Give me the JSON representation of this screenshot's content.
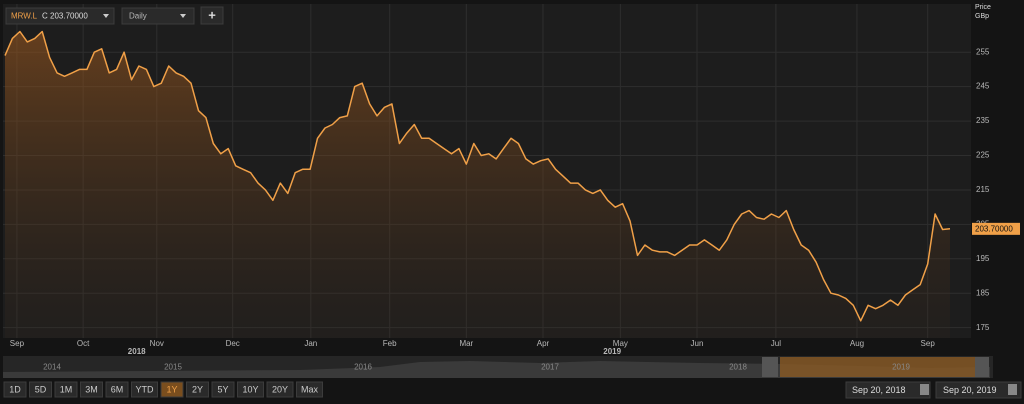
{
  "toolbar": {
    "symbol": "MRW.L",
    "quote": "C 203.70000",
    "interval": "Daily",
    "add": "+"
  },
  "chart_data": {
    "type": "line",
    "y_axis_title": "Price",
    "y_axis_unit": "GBp",
    "series": [
      {
        "name": "MRW.L",
        "color": "#f0a048",
        "values": [
          254,
          259,
          261,
          258,
          259,
          261,
          253.5,
          249,
          248,
          249,
          250,
          250,
          255,
          256,
          249,
          250,
          255,
          247,
          251,
          250,
          245,
          246,
          251,
          249,
          248,
          246,
          238,
          236,
          228.5,
          225.5,
          227,
          222,
          221,
          220,
          217,
          215,
          212,
          217,
          214,
          220,
          221,
          221,
          230,
          233,
          234,
          236,
          236.5,
          245,
          246,
          240,
          236.5,
          239,
          240,
          228.5,
          231.5,
          234,
          230,
          230,
          228.5,
          227,
          225.5,
          227,
          222.5,
          228.5,
          225,
          225.5,
          224,
          227,
          230,
          228.5,
          224,
          222.5,
          223.5,
          224,
          221,
          219,
          217,
          217,
          215,
          214,
          215,
          212,
          210,
          211,
          206,
          196,
          199,
          197.5,
          197,
          197,
          196,
          197.5,
          199,
          199,
          200.5,
          199,
          197.5,
          200.5,
          205,
          208,
          209,
          207,
          206.5,
          208,
          207,
          209,
          203.5,
          199,
          197.5,
          194,
          189,
          185,
          184.5,
          183.5,
          181.5,
          177,
          181.5,
          180.5,
          181.5,
          183,
          181.5,
          184.5,
          186,
          187.5,
          193.5,
          208,
          203.5,
          203.7
        ]
      }
    ],
    "last_value_label": "203.70000",
    "xlim": [
      0,
      127
    ],
    "xticks": [
      {
        "value": 1.6,
        "label": "Sep"
      },
      {
        "value": 10.5,
        "label": "Oct"
      },
      {
        "value": 20.4,
        "label": "Nov"
      },
      {
        "value": 30.6,
        "label": "Dec"
      },
      {
        "value": 41.1,
        "label": "Jan"
      },
      {
        "value": 51.7,
        "label": "Feb"
      },
      {
        "value": 62,
        "label": "Mar"
      },
      {
        "value": 72.3,
        "label": "Apr"
      },
      {
        "value": 82.7,
        "label": "May"
      },
      {
        "value": 93,
        "label": "Jun"
      },
      {
        "value": 103.6,
        "label": "Jul"
      },
      {
        "value": 114.5,
        "label": "Aug"
      },
      {
        "value": 124,
        "label": "Sep"
      }
    ],
    "year_ticks": [
      {
        "value": 17.7,
        "label": "2018"
      },
      {
        "value": 81.6,
        "label": "2019"
      }
    ],
    "ylim": [
      172,
      269
    ],
    "yticks": [
      175,
      185,
      195,
      205,
      215,
      225,
      235,
      245,
      255
    ],
    "grid": true
  },
  "navigator": {
    "years": [
      "2014",
      "2015",
      "2016",
      "2017",
      "2018",
      "2019"
    ]
  },
  "range_buttons": [
    "1D",
    "5D",
    "1M",
    "3M",
    "6M",
    "YTD",
    "1Y",
    "2Y",
    "5Y",
    "10Y",
    "20Y",
    "Max"
  ],
  "selected_range": "1Y",
  "date_from": "Sep 20, 2018",
  "date_to": "Sep 20, 2019"
}
